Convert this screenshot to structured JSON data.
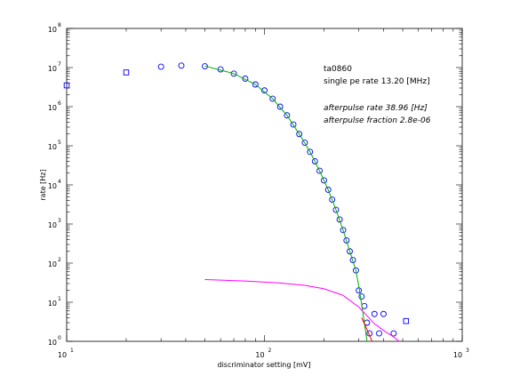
{
  "chart_data": {
    "type": "scatter",
    "title": "",
    "xlabel": "discriminator setting [mV]",
    "ylabel": "rate [Hz]",
    "xscale": "log",
    "yscale": "log",
    "xlim": [
      10,
      1000
    ],
    "ylim": [
      1,
      100000000
    ],
    "x_ticks": [
      {
        "base": "10",
        "exp": "1"
      },
      {
        "base": "10",
        "exp": "2"
      },
      {
        "base": "10",
        "exp": "3"
      }
    ],
    "y_ticks": [
      {
        "base": "10",
        "exp": "0"
      },
      {
        "base": "10",
        "exp": "1"
      },
      {
        "base": "10",
        "exp": "2"
      },
      {
        "base": "10",
        "exp": "3"
      },
      {
        "base": "10",
        "exp": "4"
      },
      {
        "base": "10",
        "exp": "5"
      },
      {
        "base": "10",
        "exp": "6"
      },
      {
        "base": "10",
        "exp": "7"
      },
      {
        "base": "10",
        "exp": "8"
      }
    ],
    "grid": false,
    "annotations": {
      "id": "ta0860",
      "single_pe_rate": "single pe rate 13.20 [MHz]",
      "afterpulse_rate": "afterpulse rate 38.96 [Hz]",
      "afterpulse_fraction": "afterpulse fraction 2.8e-06"
    },
    "series": [
      {
        "marker": "circle",
        "color": "#0000ff",
        "x": [
          30,
          38,
          50,
          60,
          70,
          80,
          90,
          100,
          110,
          120,
          130,
          140,
          150,
          160,
          170,
          180,
          190,
          200,
          210,
          220,
          230,
          240,
          250,
          260,
          270,
          280,
          290,
          300,
          310,
          320,
          330,
          340,
          360,
          380,
          400,
          450
        ],
        "y": [
          10500000,
          11200000,
          10800000,
          9000000,
          7000000,
          5200000,
          3700000,
          2600000,
          1600000,
          1000000,
          600000,
          350000,
          200000,
          120000,
          70000,
          40000,
          23000,
          13000,
          7500,
          4200,
          2300,
          1300,
          700,
          380,
          200,
          120,
          65,
          20,
          14,
          8,
          3,
          1.6,
          5,
          1.6,
          5,
          1.6
        ]
      },
      {
        "marker": "square",
        "color": "#0000ff",
        "x": [
          10,
          20,
          520
        ],
        "y": [
          3500000,
          7500000,
          3.3
        ]
      },
      {
        "marker": "line",
        "color": "#00b000",
        "x": [
          50,
          70,
          90,
          110,
          130,
          150,
          170,
          190,
          210,
          230,
          250,
          270,
          290,
          300,
          310,
          320,
          330
        ],
        "y": [
          11000000,
          7000000,
          3700000,
          1600000,
          600000,
          200000,
          70000,
          23000,
          7500,
          2300,
          700,
          200,
          65,
          25,
          9,
          3,
          1
        ]
      },
      {
        "marker": "line",
        "color": "#ff00ff",
        "x": [
          50,
          80,
          120,
          160,
          200,
          250,
          300,
          330,
          360,
          400,
          450,
          480
        ],
        "y": [
          38,
          35,
          31,
          27,
          22,
          15,
          7.5,
          4.5,
          2.8,
          1.9,
          1.3,
          1
        ]
      },
      {
        "marker": "line",
        "color": "#ff0000",
        "x": [
          310,
          330,
          350
        ],
        "y": [
          4,
          2,
          1
        ]
      }
    ]
  }
}
